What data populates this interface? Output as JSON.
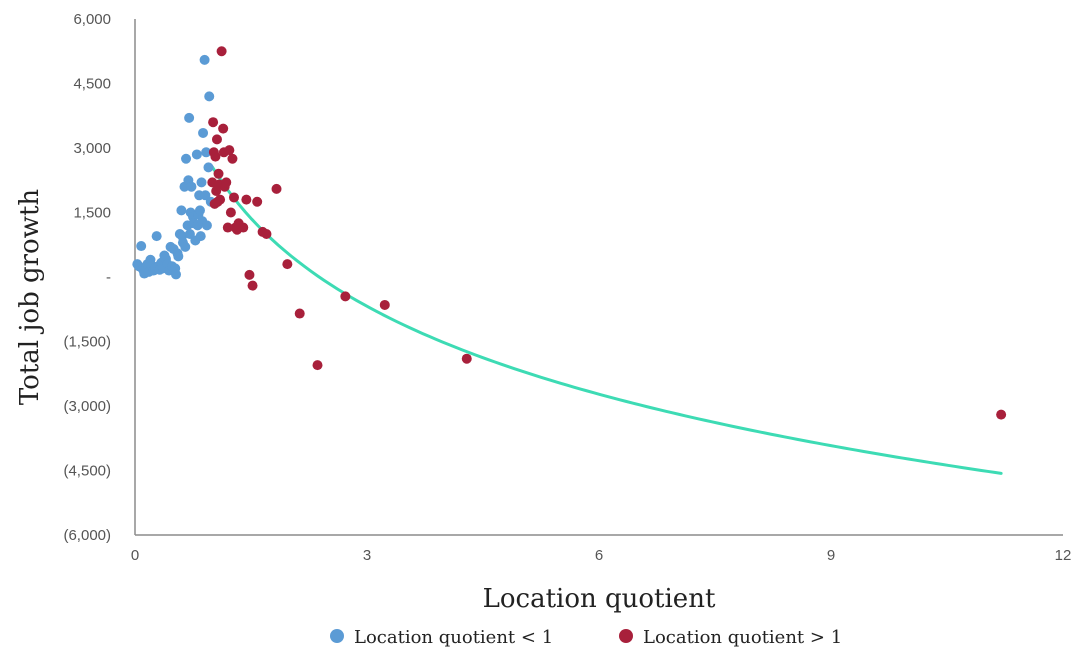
{
  "chart_data": {
    "type": "scatter",
    "xlabel": "Location quotient",
    "ylabel": "Total job growth",
    "xlim": [
      0,
      12
    ],
    "ylim": [
      -6000,
      6000
    ],
    "x_ticks": [
      {
        "value": 0,
        "label": "0"
      },
      {
        "value": 3,
        "label": "3"
      },
      {
        "value": 6,
        "label": "6"
      },
      {
        "value": 9,
        "label": "9"
      },
      {
        "value": 12,
        "label": "12"
      }
    ],
    "y_ticks": [
      {
        "value": 6000,
        "label": "6,000"
      },
      {
        "value": 4500,
        "label": "4,500"
      },
      {
        "value": 3000,
        "label": "3,000"
      },
      {
        "value": 1500,
        "label": "1,500"
      },
      {
        "value": 0,
        "label": "-"
      },
      {
        "value": -1500,
        "label": "(1,500)"
      },
      {
        "value": -3000,
        "label": "(3,000)"
      },
      {
        "value": -4500,
        "label": "(4,500)"
      },
      {
        "value": -6000,
        "label": "(6,000)"
      }
    ],
    "grid": false,
    "legend_position": "bottom",
    "series": [
      {
        "name": "Location quotient < 1",
        "color": "#5b9bd5",
        "points": [
          [
            0.03,
            300
          ],
          [
            0.05,
            250
          ],
          [
            0.08,
            720
          ],
          [
            0.1,
            180
          ],
          [
            0.12,
            80
          ],
          [
            0.14,
            200
          ],
          [
            0.16,
            300
          ],
          [
            0.18,
            120
          ],
          [
            0.2,
            400
          ],
          [
            0.22,
            260
          ],
          [
            0.24,
            150
          ],
          [
            0.26,
            210
          ],
          [
            0.28,
            950
          ],
          [
            0.3,
            250
          ],
          [
            0.32,
            170
          ],
          [
            0.34,
            330
          ],
          [
            0.36,
            200
          ],
          [
            0.38,
            500
          ],
          [
            0.4,
            420
          ],
          [
            0.42,
            300
          ],
          [
            0.44,
            150
          ],
          [
            0.46,
            700
          ],
          [
            0.48,
            250
          ],
          [
            0.5,
            650
          ],
          [
            0.52,
            200
          ],
          [
            0.53,
            60
          ],
          [
            0.55,
            550
          ],
          [
            0.56,
            480
          ],
          [
            0.58,
            1000
          ],
          [
            0.6,
            1550
          ],
          [
            0.61,
            950
          ],
          [
            0.62,
            800
          ],
          [
            0.64,
            2100
          ],
          [
            0.65,
            700
          ],
          [
            0.66,
            2750
          ],
          [
            0.68,
            1200
          ],
          [
            0.69,
            2250
          ],
          [
            0.7,
            3700
          ],
          [
            0.71,
            1000
          ],
          [
            0.72,
            1500
          ],
          [
            0.73,
            2100
          ],
          [
            0.75,
            1400
          ],
          [
            0.76,
            1250
          ],
          [
            0.78,
            850
          ],
          [
            0.8,
            2850
          ],
          [
            0.81,
            1200
          ],
          [
            0.82,
            1450
          ],
          [
            0.83,
            1900
          ],
          [
            0.84,
            1550
          ],
          [
            0.85,
            950
          ],
          [
            0.86,
            2200
          ],
          [
            0.87,
            1300
          ],
          [
            0.88,
            3350
          ],
          [
            0.9,
            5050
          ],
          [
            0.91,
            1900
          ],
          [
            0.92,
            2900
          ],
          [
            0.93,
            1200
          ],
          [
            0.95,
            2550
          ],
          [
            0.96,
            4200
          ],
          [
            0.98,
            1750
          ]
        ]
      },
      {
        "name": "Location quotient > 1",
        "color": "#a8203b",
        "points": [
          [
            1.0,
            2200
          ],
          [
            1.01,
            3600
          ],
          [
            1.02,
            2900
          ],
          [
            1.03,
            1700
          ],
          [
            1.04,
            2800
          ],
          [
            1.05,
            2000
          ],
          [
            1.06,
            3200
          ],
          [
            1.07,
            1750
          ],
          [
            1.08,
            2400
          ],
          [
            1.09,
            2150
          ],
          [
            1.1,
            1800
          ],
          [
            1.12,
            5250
          ],
          [
            1.14,
            3450
          ],
          [
            1.15,
            2900
          ],
          [
            1.16,
            2100
          ],
          [
            1.18,
            2200
          ],
          [
            1.2,
            1150
          ],
          [
            1.22,
            2950
          ],
          [
            1.24,
            1500
          ],
          [
            1.26,
            2750
          ],
          [
            1.28,
            1850
          ],
          [
            1.3,
            1150
          ],
          [
            1.32,
            1100
          ],
          [
            1.34,
            1250
          ],
          [
            1.4,
            1150
          ],
          [
            1.44,
            1800
          ],
          [
            1.48,
            50
          ],
          [
            1.52,
            -200
          ],
          [
            1.58,
            1750
          ],
          [
            1.65,
            1050
          ],
          [
            1.7,
            1000
          ],
          [
            1.83,
            2050
          ],
          [
            1.97,
            300
          ],
          [
            2.13,
            -850
          ],
          [
            2.36,
            -2050
          ],
          [
            2.72,
            -450
          ],
          [
            3.23,
            -650
          ],
          [
            4.29,
            -1900
          ],
          [
            11.2,
            -3200
          ]
        ]
      }
    ],
    "trendline": {
      "type": "log",
      "color": "#3ddbb4",
      "intercept": 2560,
      "slope": -2950,
      "x_range": [
        1.0,
        11.2
      ]
    }
  }
}
